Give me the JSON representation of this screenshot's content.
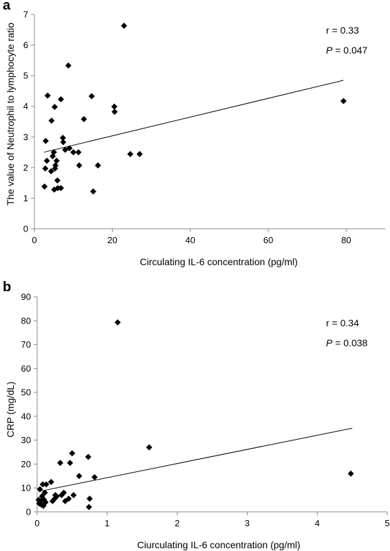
{
  "chart_data": [
    {
      "type": "scatter",
      "panel_label": "a",
      "xlabel": "Circulating IL-6 concentration (pg/ml)",
      "ylabel": "The value of Neutrophil to lymphocyte ratio",
      "xlim": [
        0,
        90
      ],
      "ylim": [
        0,
        7
      ],
      "xticks": [
        "0",
        "20",
        "40",
        "60",
        "80"
      ],
      "yticks": [
        "0",
        "1",
        "2",
        "3",
        "4",
        "5",
        "6",
        "7"
      ],
      "grid": false,
      "annotations": {
        "r_text": "r = 0.33",
        "p_label": "P",
        "p_text": " = 0.047"
      },
      "trendline": {
        "x": [
          2.5,
          79.3
        ],
        "y": [
          2.5,
          4.85
        ]
      },
      "points": [
        [
          3.4,
          4.35
        ],
        [
          5.2,
          3.98
        ],
        [
          4.4,
          3.53
        ],
        [
          6.8,
          4.23
        ],
        [
          8.7,
          5.33
        ],
        [
          2.9,
          2.87
        ],
        [
          3.2,
          2.22
        ],
        [
          2.8,
          1.97
        ],
        [
          2.6,
          1.38
        ],
        [
          4.3,
          1.88
        ],
        [
          4.7,
          2.37
        ],
        [
          5.0,
          2.5
        ],
        [
          5.3,
          1.97
        ],
        [
          5.4,
          2.07
        ],
        [
          5.7,
          2.22
        ],
        [
          5.1,
          1.28
        ],
        [
          5.9,
          1.58
        ],
        [
          6.0,
          1.33
        ],
        [
          6.8,
          1.33
        ],
        [
          7.3,
          2.97
        ],
        [
          7.4,
          2.83
        ],
        [
          7.9,
          2.58
        ],
        [
          9.0,
          2.63
        ],
        [
          10.0,
          2.5
        ],
        [
          11.3,
          2.5
        ],
        [
          11.5,
          2.07
        ],
        [
          12.7,
          3.58
        ],
        [
          14.7,
          4.33
        ],
        [
          15.1,
          1.22
        ],
        [
          16.3,
          2.07
        ],
        [
          20.5,
          3.99
        ],
        [
          20.6,
          3.82
        ],
        [
          23.0,
          6.63
        ],
        [
          24.6,
          2.44
        ],
        [
          27.0,
          2.44
        ],
        [
          79.3,
          4.17
        ]
      ]
    },
    {
      "type": "scatter",
      "panel_label": "b",
      "xlabel": "Ciurculating IL-6 concentration (pg/ml)",
      "ylabel": "CRP (mg/dL)",
      "xlim": [
        0,
        5
      ],
      "ylim": [
        0,
        90
      ],
      "xticks": [
        "0",
        "1",
        "2",
        "3",
        "4",
        "5"
      ],
      "yticks": [
        "0",
        "10",
        "20",
        "30",
        "40",
        "50",
        "60",
        "70",
        "80",
        "90"
      ],
      "grid": false,
      "annotations": {
        "r_text": "r = 0.34",
        "p_label": "P",
        "p_text": " = 0.038"
      },
      "trendline": {
        "x": [
          0.02,
          4.5
        ],
        "y": [
          8.5,
          35.0
        ]
      },
      "points": [
        [
          0.02,
          5.0
        ],
        [
          0.03,
          3.5
        ],
        [
          0.04,
          9.5
        ],
        [
          0.05,
          4.5
        ],
        [
          0.06,
          3.0
        ],
        [
          0.07,
          6.5
        ],
        [
          0.08,
          11.5
        ],
        [
          0.09,
          2.5
        ],
        [
          0.1,
          5.0
        ],
        [
          0.11,
          8.0
        ],
        [
          0.12,
          4.0
        ],
        [
          0.13,
          11.5
        ],
        [
          0.2,
          12.5
        ],
        [
          0.22,
          4.5
        ],
        [
          0.25,
          5.5
        ],
        [
          0.26,
          7.0
        ],
        [
          0.28,
          6.5
        ],
        [
          0.33,
          20.5
        ],
        [
          0.35,
          7.0
        ],
        [
          0.38,
          8.0
        ],
        [
          0.4,
          4.5
        ],
        [
          0.45,
          5.5
        ],
        [
          0.47,
          20.5
        ],
        [
          0.5,
          24.5
        ],
        [
          0.52,
          7.0
        ],
        [
          0.6,
          15.0
        ],
        [
          0.73,
          23.0
        ],
        [
          0.74,
          2.0
        ],
        [
          0.75,
          5.5
        ],
        [
          0.82,
          14.5
        ],
        [
          1.15,
          79.3
        ],
        [
          1.6,
          27.0
        ],
        [
          4.48,
          16.0
        ]
      ]
    }
  ]
}
